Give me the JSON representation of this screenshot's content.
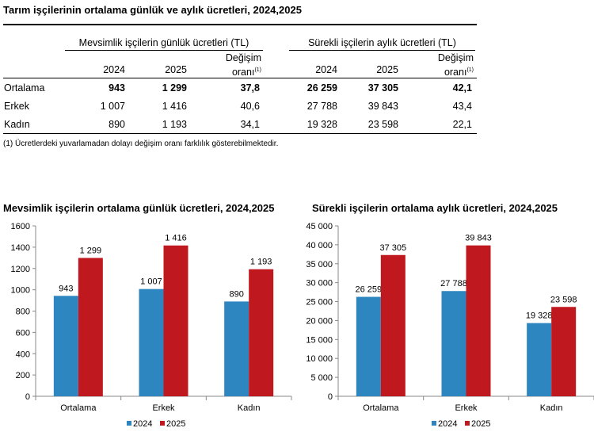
{
  "table": {
    "title": "Tarım işçilerinin ortalama günlük ve aylık ücretleri, 2024,2025",
    "group_seasonal": "Mevsimlik işçilerin günlük ücretleri (TL)",
    "group_permanent": "Sürekli işçilerin aylık ücretleri (TL)",
    "col_2024": "2024",
    "col_2025": "2025",
    "col_change_1": "Değişim",
    "col_change_2": "oranı",
    "footnote_mark": "(1)",
    "rows": [
      {
        "label": "Ortalama",
        "s2024": "943",
        "s2025": "1 299",
        "schg": "37,8",
        "p2024": "26 259",
        "p2025": "37 305",
        "pchg": "42,1"
      },
      {
        "label": "Erkek",
        "s2024": "1 007",
        "s2025": "1 416",
        "schg": "40,6",
        "p2024": "27 788",
        "p2025": "39 843",
        "pchg": "43,4"
      },
      {
        "label": "Kadın",
        "s2024": "890",
        "s2025": "1 193",
        "schg": "34,1",
        "p2024": "19 328",
        "p2025": "23 598",
        "pchg": "22,1"
      }
    ],
    "footnote": "(1) Ücretlerdeki yuvarlamadan dolayı değişim oranı farklılık gösterebilmektedir."
  },
  "colors": {
    "series_2024": "#2e86c1",
    "series_2025": "#c0181f"
  },
  "chart_data": [
    {
      "type": "bar",
      "title": "Mevsimlik işçilerin ortalama günlük ücretleri, 2024,2025",
      "categories": [
        "Ortalama",
        "Erkek",
        "Kadın"
      ],
      "series": [
        {
          "name": "2024",
          "values": [
            943,
            1007,
            890
          ],
          "labels": [
            "943",
            "1 007",
            "890"
          ]
        },
        {
          "name": "2025",
          "values": [
            1299,
            1416,
            1193
          ],
          "labels": [
            "1 299",
            "1 416",
            "1 193"
          ]
        }
      ],
      "ylim": [
        0,
        1600
      ],
      "yticks": [
        0,
        200,
        400,
        600,
        800,
        1000,
        1200,
        1400,
        1600
      ],
      "ytick_labels": [
        "0",
        "200",
        "400",
        "600",
        "800",
        "1000",
        "1200",
        "1400",
        "1600"
      ],
      "legend": "bottom",
      "grid": false
    },
    {
      "type": "bar",
      "title": "Sürekli işçilerin ortalama aylık ücretleri, 2024,2025",
      "categories": [
        "Ortalama",
        "Erkek",
        "Kadın"
      ],
      "series": [
        {
          "name": "2024",
          "values": [
            26259,
            27788,
            19328
          ],
          "labels": [
            "26 259",
            "27 788",
            "19 328"
          ]
        },
        {
          "name": "2025",
          "values": [
            37305,
            39843,
            23598
          ],
          "labels": [
            "37 305",
            "39 843",
            "23 598"
          ]
        }
      ],
      "ylim": [
        0,
        45000
      ],
      "yticks": [
        0,
        5000,
        10000,
        15000,
        20000,
        25000,
        30000,
        35000,
        40000,
        45000
      ],
      "ytick_labels": [
        "0",
        "5 000",
        "10 000",
        "15 000",
        "20 000",
        "25 000",
        "30 000",
        "35 000",
        "40 000",
        "45 000"
      ],
      "legend": "bottom",
      "grid": false
    }
  ]
}
